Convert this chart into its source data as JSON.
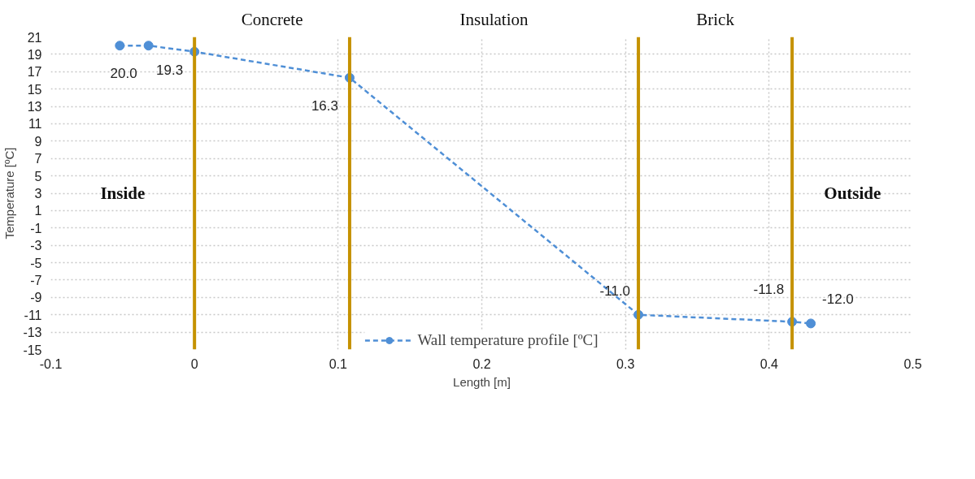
{
  "chart_data": {
    "type": "line",
    "xlabel": "Length [m]",
    "ylabel": "Temperature [ºC]",
    "x": [
      -0.052,
      -0.032,
      0,
      0.108,
      0.309,
      0.416,
      0.429
    ],
    "series": [
      {
        "name": "Wall temperature profile [ºC]",
        "color": "#4f8fd6",
        "values": [
          20.0,
          20.0,
          19.3,
          16.3,
          -11.0,
          -11.8,
          -12.0
        ],
        "value_labels": [
          null,
          "20.0",
          "19.3",
          "16.3",
          "-11.0",
          "-11.8",
          "-12.0"
        ]
      }
    ],
    "xlim": [
      -0.1,
      0.5
    ],
    "xticks": [
      -0.1,
      0,
      0.1,
      0.2,
      0.3,
      0.4,
      0.5
    ],
    "ylim": [
      -15,
      21
    ],
    "yticks": [
      -15,
      -13,
      -11,
      -9,
      -7,
      -5,
      -3,
      -1,
      1,
      3,
      5,
      7,
      9,
      11,
      13,
      15,
      17,
      19,
      21
    ],
    "ref_lines": [
      {
        "axis": "x",
        "value": 0,
        "color": "#c59200"
      },
      {
        "axis": "x",
        "value": 0.108,
        "color": "#c59200"
      },
      {
        "axis": "x",
        "value": 0.309,
        "color": "#c59200"
      },
      {
        "axis": "x",
        "value": 0.416,
        "color": "#c59200"
      }
    ],
    "annotations": [
      "Inside",
      "Concrete",
      "Insulation",
      "Brick",
      "Outside"
    ],
    "grid": true,
    "legend": "bottom",
    "marker": "circle",
    "line_style": "dashed"
  }
}
